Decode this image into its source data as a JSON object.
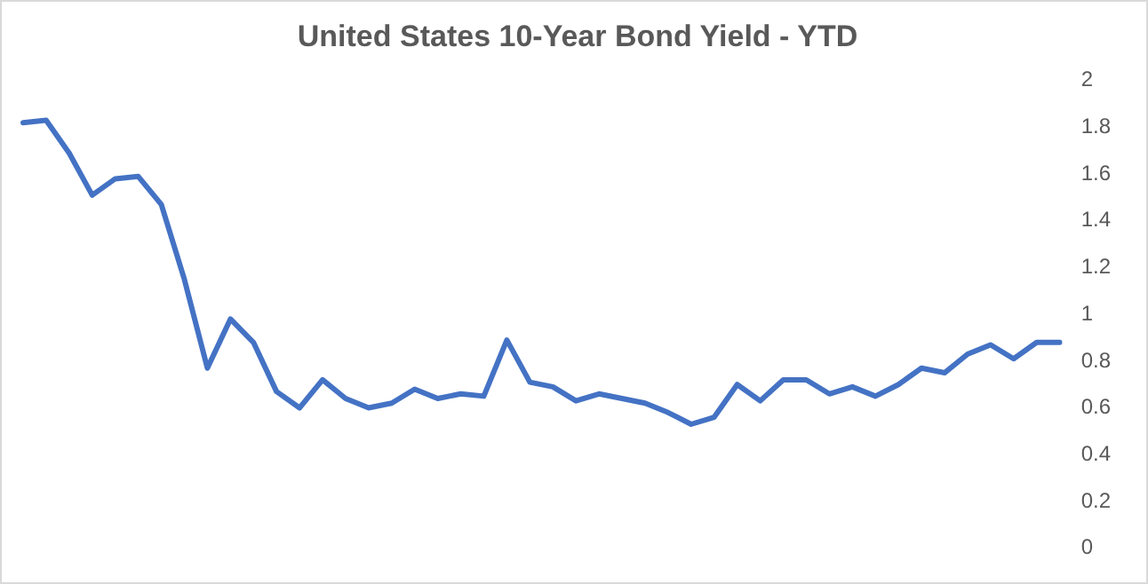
{
  "chart_data": {
    "type": "line",
    "title": "United States 10-Year Bond Yield - YTD",
    "categories": [
      null,
      null,
      null,
      null,
      null,
      null,
      null,
      null,
      null,
      null,
      null,
      null,
      null,
      null,
      null,
      null,
      null,
      null,
      null,
      null,
      null,
      null,
      null,
      null,
      null,
      null,
      null,
      null,
      null,
      null,
      null,
      null,
      null,
      null,
      null,
      null,
      null,
      null,
      null,
      null,
      null,
      null,
      null,
      null,
      null,
      null
    ],
    "series": [
      {
        "color": "#4472c4",
        "values": [
          1.82,
          1.83,
          1.69,
          1.51,
          1.58,
          1.59,
          1.47,
          1.15,
          0.77,
          0.98,
          0.88,
          0.67,
          0.6,
          0.72,
          0.64,
          0.6,
          0.62,
          0.68,
          0.64,
          0.66,
          0.65,
          0.89,
          0.71,
          0.69,
          0.63,
          0.66,
          0.64,
          0.62,
          0.58,
          0.53,
          0.56,
          0.7,
          0.63,
          0.72,
          0.72,
          0.66,
          0.69,
          0.65,
          0.7,
          0.77,
          0.75,
          0.83,
          0.87,
          0.81,
          0.88,
          0.88
        ]
      }
    ],
    "ylim": [
      0,
      2
    ],
    "yticks": [
      0,
      0.2,
      0.4,
      0.6,
      0.8,
      1,
      1.2,
      1.4,
      1.6,
      1.8,
      2
    ],
    "grid": false,
    "legend": false,
    "marker": "none",
    "line_style": "solid",
    "tick_labels": "y"
  }
}
